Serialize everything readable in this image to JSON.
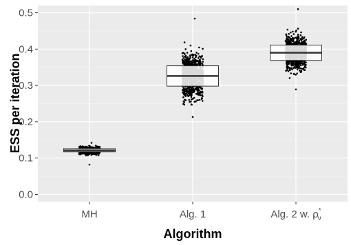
{
  "chart_data": {
    "type": "boxplot",
    "xlabel": "Algorithm",
    "ylabel": "ESS per iteration",
    "categories": [
      {
        "label": "MH"
      },
      {
        "label": "Alg. 1"
      },
      {
        "label": "Alg. 2 w. ",
        "symbol": "ρ",
        "superscript": "*",
        "subscript": "ν"
      }
    ],
    "ylim": [
      -0.02,
      0.52
    ],
    "yticks": [
      0.0,
      0.1,
      0.2,
      0.3,
      0.4,
      0.5
    ],
    "ytick_labels": [
      "0.0",
      "0.1",
      "0.2",
      "0.3",
      "0.4",
      "0.5"
    ],
    "grid": true,
    "boxes": [
      {
        "q1": 0.117,
        "median": 0.121,
        "q3": 0.126,
        "jitter_min": 0.082,
        "jitter_max": 0.142
      },
      {
        "q1": 0.298,
        "median": 0.326,
        "q3": 0.354,
        "jitter_min": 0.213,
        "jitter_max": 0.484
      },
      {
        "q1": 0.369,
        "median": 0.39,
        "q3": 0.411,
        "jitter_min": 0.289,
        "jitter_max": 0.51
      }
    ],
    "colors": {
      "panel": "#ebebeb",
      "grid_major": "#ffffff",
      "grid_minor": "#f5f5f5",
      "box_fill": "#ffffff",
      "box_stroke": "#333333",
      "points": "#000000"
    }
  }
}
